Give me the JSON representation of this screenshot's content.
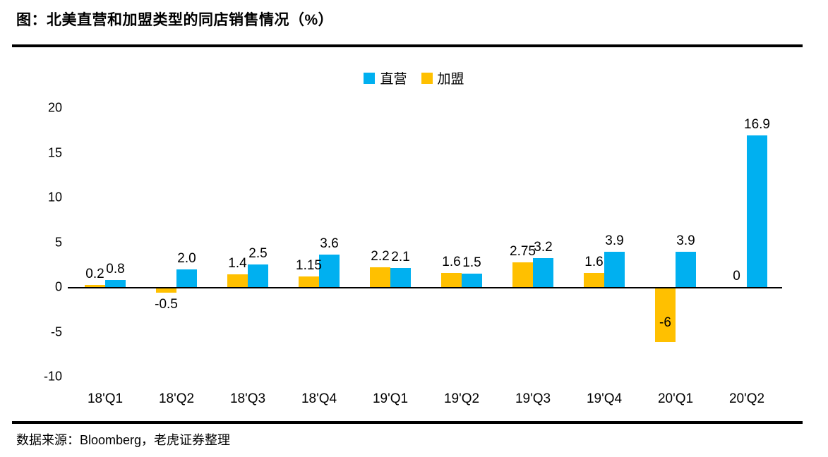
{
  "page": {
    "title": "图：北美直营和加盟类型的同店销售情况（%）",
    "footer": "数据来源：Bloomberg，老虎证券整理"
  },
  "legend": {
    "items": [
      {
        "label": "直营",
        "color": "#00B0F0"
      },
      {
        "label": "加盟",
        "color": "#FFC000"
      }
    ]
  },
  "chart_data": {
    "type": "bar",
    "title": "北美直营和加盟类型的同店销售情况（%）",
    "categories": [
      "18'Q1",
      "18'Q2",
      "18'Q3",
      "18'Q4",
      "19'Q1",
      "19'Q2",
      "19'Q3",
      "19'Q4",
      "20'Q1",
      "20'Q2"
    ],
    "series": [
      {
        "name": "直营",
        "color": "#00B0F0",
        "slot": 1,
        "values": [
          0.8,
          2.0,
          2.5,
          3.6,
          2.1,
          1.5,
          3.2,
          3.9,
          3.9,
          16.9
        ],
        "labels": [
          "0.8",
          "2.0",
          "2.5",
          "3.6",
          "2.1",
          "1.5",
          "3.2",
          "3.9",
          "3.9",
          "16.9"
        ],
        "label_pos": [
          "above",
          "above",
          "above",
          "above",
          "above",
          "above",
          "above",
          "above",
          "above",
          "above"
        ]
      },
      {
        "name": "加盟",
        "color": "#FFC000",
        "slot": 0,
        "values": [
          0.2,
          -0.5,
          1.4,
          1.15,
          2.2,
          1.6,
          2.75,
          1.6,
          -6,
          0
        ],
        "labels": [
          "0.2",
          "-0.5",
          "1.4",
          "1.15",
          "2.2",
          "1.6",
          "2.75",
          "1.6",
          "-6",
          "0"
        ],
        "label_pos": [
          "above",
          "below",
          "above",
          "above",
          "above",
          "above",
          "above",
          "above",
          "inside",
          "above"
        ]
      }
    ],
    "y_ticks": [
      20,
      15,
      10,
      5,
      0,
      -5,
      -10
    ],
    "ylim": [
      -10,
      20
    ],
    "xlabel": "",
    "ylabel": "",
    "grid": false,
    "legend_position": "top-center"
  }
}
